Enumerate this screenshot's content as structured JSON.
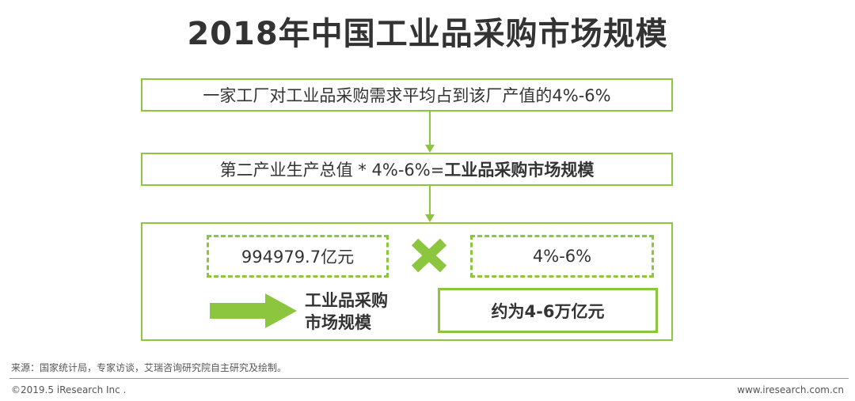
{
  "title": "2018年中国工业品采购市场规模",
  "step1": {
    "text": "一家工厂对工业品采购需求平均占到该厂产值的4%-6%"
  },
  "step2": {
    "text_prefix": "第二产业生产总值 * 4%-6%=",
    "text_bold": "工业品采购市场规模"
  },
  "step3": {
    "factor_a": "994979.7亿元",
    "factor_b": "4%-6%",
    "result_label_line1": "工业品采购",
    "result_label_line2": "市场规模",
    "result_value": "约为4-6万亿元"
  },
  "footer": {
    "source": "来源：国家统计局，专家访谈，艾瑞咨询研究院自主研究及绘制。",
    "copyright": "©2019.5 iResearch Inc .",
    "url": "www.iresearch.com.cn"
  },
  "colors": {
    "accent": "#8cc63f",
    "text": "#333333"
  }
}
